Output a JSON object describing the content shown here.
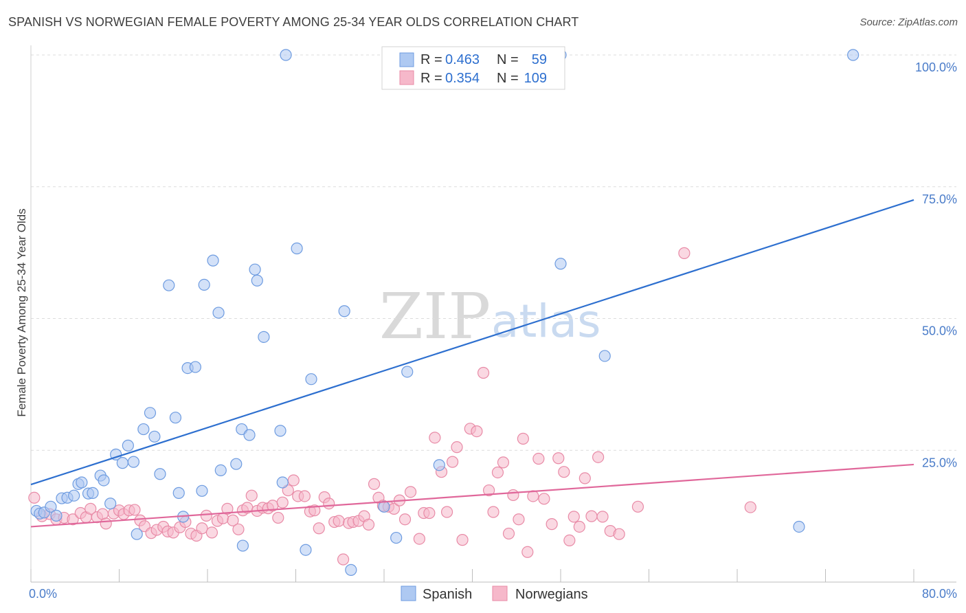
{
  "title": "SPANISH VS NORWEGIAN FEMALE POVERTY AMONG 25-34 YEAR OLDS CORRELATION CHART",
  "source": "Source: ZipAtlas.com",
  "watermark": {
    "zip": "ZIP",
    "atlas": "atlas"
  },
  "legend": {
    "top": [
      {
        "r_label": "R =",
        "r_value": "0.463",
        "n_label": "N =",
        "n_value": "59"
      },
      {
        "r_label": "R =",
        "r_value": "0.354",
        "n_label": "N =",
        "n_value": "109"
      }
    ],
    "bottom": [
      "Spanish",
      "Norwegians"
    ]
  },
  "colors": {
    "spanish_fill": "#aec9f2",
    "spanish_stroke": "#6d9be0",
    "spanish_line": "#2d6fcf",
    "norwegian_fill": "#f6b8ca",
    "norwegian_stroke": "#e88aa6",
    "norwegian_line": "#e0679a",
    "axis_text": "#4a7cc9",
    "grid": "#dcdcdc"
  },
  "chart_data": {
    "type": "scatter",
    "title": "SPANISH VS NORWEGIAN FEMALE POVERTY AMONG 25-34 YEAR OLDS CORRELATION CHART",
    "xlabel": "",
    "ylabel": "Female Poverty Among 25-34 Year Olds",
    "xlim": [
      0,
      80
    ],
    "ylim": [
      0,
      100
    ],
    "x_tick_labels": [
      "0.0%",
      "80.0%"
    ],
    "y_tick_labels": [
      "25.0%",
      "50.0%",
      "75.0%",
      "100.0%"
    ],
    "y_ticks": [
      25,
      50,
      75,
      100
    ],
    "series": [
      {
        "name": "Spanish",
        "r": 0.463,
        "n": 59,
        "trend": {
          "x": [
            0,
            80
          ],
          "y": [
            18.5,
            72.5
          ]
        },
        "points": [
          [
            0.5,
            13.5
          ],
          [
            0.8,
            13.0
          ],
          [
            1.2,
            13.2
          ],
          [
            1.8,
            14.3
          ],
          [
            2.3,
            12.6
          ],
          [
            2.8,
            15.9
          ],
          [
            3.3,
            16.0
          ],
          [
            3.9,
            16.4
          ],
          [
            4.3,
            18.6
          ],
          [
            4.6,
            18.9
          ],
          [
            5.2,
            16.8
          ],
          [
            5.6,
            16.9
          ],
          [
            6.3,
            20.2
          ],
          [
            6.6,
            19.3
          ],
          [
            7.2,
            14.9
          ],
          [
            7.7,
            24.2
          ],
          [
            8.3,
            22.6
          ],
          [
            8.8,
            25.9
          ],
          [
            9.3,
            22.8
          ],
          [
            9.6,
            9.1
          ],
          [
            10.2,
            29.0
          ],
          [
            10.8,
            32.1
          ],
          [
            11.2,
            27.6
          ],
          [
            11.7,
            20.5
          ],
          [
            12.5,
            56.3
          ],
          [
            13.1,
            31.2
          ],
          [
            13.4,
            16.9
          ],
          [
            13.8,
            12.4
          ],
          [
            14.2,
            40.6
          ],
          [
            14.9,
            40.8
          ],
          [
            15.5,
            17.3
          ],
          [
            15.7,
            56.4
          ],
          [
            16.5,
            61.0
          ],
          [
            17.0,
            51.1
          ],
          [
            17.2,
            21.2
          ],
          [
            18.6,
            22.4
          ],
          [
            19.1,
            29.0
          ],
          [
            19.2,
            6.9
          ],
          [
            19.8,
            27.9
          ],
          [
            20.3,
            59.3
          ],
          [
            20.5,
            57.2
          ],
          [
            21.1,
            46.5
          ],
          [
            22.6,
            28.7
          ],
          [
            22.8,
            18.9
          ],
          [
            23.1,
            100.0
          ],
          [
            24.1,
            63.3
          ],
          [
            24.9,
            6.1
          ],
          [
            25.4,
            38.5
          ],
          [
            28.4,
            51.4
          ],
          [
            29.0,
            2.3
          ],
          [
            32.0,
            14.3
          ],
          [
            33.1,
            8.4
          ],
          [
            34.1,
            39.9
          ],
          [
            37.0,
            22.2
          ],
          [
            48.0,
            60.4
          ],
          [
            52.0,
            42.9
          ],
          [
            69.6,
            10.5
          ],
          [
            74.5,
            100.0
          ],
          [
            48.0,
            100.0
          ]
        ]
      },
      {
        "name": "Norwegians",
        "r": 0.354,
        "n": 109,
        "trend": {
          "x": [
            0,
            80
          ],
          "y": [
            10.5,
            22.3
          ]
        },
        "points": [
          [
            0.3,
            16.0
          ],
          [
            1.0,
            12.5
          ],
          [
            1.7,
            12.9
          ],
          [
            2.3,
            11.9
          ],
          [
            3.0,
            12.2
          ],
          [
            3.8,
            11.9
          ],
          [
            4.5,
            13.1
          ],
          [
            5.0,
            12.3
          ],
          [
            5.4,
            13.9
          ],
          [
            6.0,
            12.3
          ],
          [
            6.5,
            12.9
          ],
          [
            6.8,
            11.1
          ],
          [
            7.5,
            13.0
          ],
          [
            8.0,
            13.6
          ],
          [
            8.4,
            12.9
          ],
          [
            8.9,
            13.6
          ],
          [
            9.4,
            13.7
          ],
          [
            9.9,
            11.7
          ],
          [
            10.3,
            10.6
          ],
          [
            10.9,
            9.3
          ],
          [
            11.4,
            9.9
          ],
          [
            12.0,
            10.5
          ],
          [
            12.4,
            9.6
          ],
          [
            12.9,
            9.4
          ],
          [
            13.5,
            10.4
          ],
          [
            14.0,
            11.4
          ],
          [
            14.5,
            9.2
          ],
          [
            15.0,
            8.8
          ],
          [
            15.5,
            10.2
          ],
          [
            15.9,
            12.6
          ],
          [
            16.4,
            9.4
          ],
          [
            16.9,
            11.6
          ],
          [
            17.4,
            12.1
          ],
          [
            17.8,
            13.9
          ],
          [
            18.3,
            11.7
          ],
          [
            18.8,
            10.0
          ],
          [
            19.2,
            13.6
          ],
          [
            19.6,
            14.1
          ],
          [
            20.0,
            16.4
          ],
          [
            20.5,
            13.5
          ],
          [
            21.0,
            14.1
          ],
          [
            21.5,
            14.0
          ],
          [
            21.9,
            14.5
          ],
          [
            22.4,
            12.2
          ],
          [
            22.8,
            15.1
          ],
          [
            23.3,
            17.4
          ],
          [
            23.8,
            19.3
          ],
          [
            24.2,
            16.3
          ],
          [
            24.8,
            16.3
          ],
          [
            25.3,
            13.4
          ],
          [
            25.7,
            13.6
          ],
          [
            26.1,
            10.2
          ],
          [
            26.6,
            16.1
          ],
          [
            27.0,
            14.9
          ],
          [
            27.5,
            11.4
          ],
          [
            27.9,
            11.6
          ],
          [
            28.3,
            4.3
          ],
          [
            28.8,
            11.2
          ],
          [
            29.2,
            11.4
          ],
          [
            29.7,
            11.6
          ],
          [
            30.2,
            12.5
          ],
          [
            30.6,
            10.9
          ],
          [
            31.1,
            18.6
          ],
          [
            31.5,
            16.0
          ],
          [
            31.9,
            14.5
          ],
          [
            32.4,
            14.3
          ],
          [
            32.9,
            13.9
          ],
          [
            33.4,
            15.5
          ],
          [
            33.9,
            11.9
          ],
          [
            34.4,
            17.1
          ],
          [
            35.2,
            8.2
          ],
          [
            35.6,
            13.1
          ],
          [
            36.1,
            13.1
          ],
          [
            36.6,
            27.4
          ],
          [
            37.2,
            20.9
          ],
          [
            37.7,
            13.3
          ],
          [
            38.2,
            22.8
          ],
          [
            38.6,
            25.6
          ],
          [
            39.1,
            8.0
          ],
          [
            39.8,
            29.1
          ],
          [
            40.4,
            28.6
          ],
          [
            41.0,
            39.7
          ],
          [
            41.5,
            17.4
          ],
          [
            41.9,
            13.3
          ],
          [
            42.3,
            20.8
          ],
          [
            42.8,
            22.7
          ],
          [
            43.3,
            9.2
          ],
          [
            43.7,
            16.5
          ],
          [
            44.2,
            11.9
          ],
          [
            44.6,
            27.2
          ],
          [
            45.0,
            5.7
          ],
          [
            45.5,
            16.3
          ],
          [
            46.0,
            23.4
          ],
          [
            46.5,
            15.8
          ],
          [
            47.2,
            11.0
          ],
          [
            47.8,
            23.5
          ],
          [
            48.3,
            20.9
          ],
          [
            48.8,
            7.9
          ],
          [
            49.2,
            12.4
          ],
          [
            49.7,
            10.5
          ],
          [
            50.2,
            19.7
          ],
          [
            50.8,
            12.5
          ],
          [
            51.4,
            23.7
          ],
          [
            51.8,
            12.4
          ],
          [
            52.5,
            9.7
          ],
          [
            53.3,
            9.1
          ],
          [
            55.0,
            14.3
          ],
          [
            65.2,
            14.2
          ],
          [
            59.2,
            62.4
          ]
        ]
      }
    ]
  }
}
